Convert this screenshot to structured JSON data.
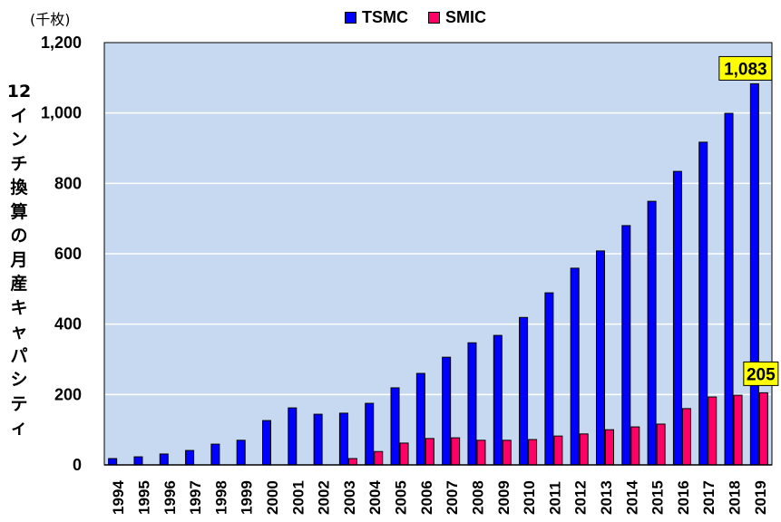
{
  "chart_data": {
    "type": "bar",
    "title": "",
    "unit_label": "(千枚)",
    "ylabel": "12インチ換算の月産キャパシティ",
    "xlabel": "",
    "ylim": [
      0,
      1200
    ],
    "yticks": [
      0,
      200,
      400,
      600,
      800,
      1000,
      1200
    ],
    "ytick_labels": [
      "0",
      "200",
      "400",
      "600",
      "800",
      "1,000",
      "1,200"
    ],
    "grid": true,
    "legend_position": "top-center",
    "categories": [
      "1994",
      "1995",
      "1996",
      "1997",
      "1998",
      "1999",
      "2000",
      "2001",
      "2002",
      "2003",
      "2004",
      "2005",
      "2006",
      "2007",
      "2008",
      "2009",
      "2010",
      "2011",
      "2012",
      "2013",
      "2014",
      "2015",
      "2016",
      "2017",
      "2018",
      "2019"
    ],
    "series": [
      {
        "name": "TSMC",
        "color": "#0000ff",
        "values": [
          18,
          23,
          31,
          41,
          59,
          70,
          126,
          162,
          144,
          147,
          175,
          219,
          260,
          306,
          347,
          368,
          419,
          489,
          559,
          608,
          680,
          749,
          834,
          917,
          999,
          1083
        ]
      },
      {
        "name": "SMIC",
        "color": "#ff0066",
        "values": [
          null,
          null,
          null,
          null,
          null,
          null,
          null,
          null,
          null,
          18,
          38,
          62,
          75,
          77,
          70,
          70,
          72,
          82,
          88,
          100,
          108,
          116,
          160,
          193,
          198,
          205
        ]
      }
    ],
    "annotations": [
      {
        "series": "TSMC",
        "category": "2019",
        "text": "1,083"
      },
      {
        "series": "SMIC",
        "category": "2019",
        "text": "205"
      }
    ],
    "colors": {
      "plot_background": "#c6d9f0",
      "gridline": "#ffffff",
      "annotation_fill": "#ffff00"
    }
  }
}
